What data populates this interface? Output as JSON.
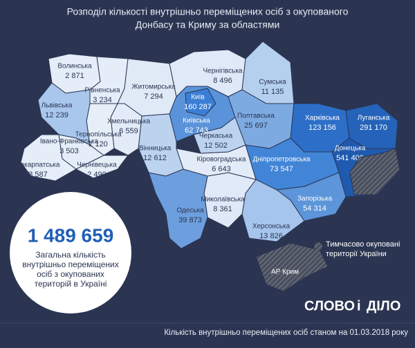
{
  "title": [
    "Розподіл кількості внутрішньо переміщених осіб з окупованого",
    "Донбасу та Криму за областями"
  ],
  "regions": [
    {
      "name": "Волинська",
      "value": "2 871",
      "color": "#e4edf8"
    },
    {
      "name": "Рівненська",
      "value": "3 234",
      "color": "#e4edf8"
    },
    {
      "name": "Житомирська",
      "value": "7 294",
      "color": "#e0eaf7"
    },
    {
      "name": "Чернігівська",
      "value": "8 496",
      "color": "#dfe9f7"
    },
    {
      "name": "Сумська",
      "value": "11 135",
      "color": "#b5cfee"
    },
    {
      "name": "Київська",
      "value": "62 743",
      "color": "#5a93da"
    },
    {
      "name": "Київ",
      "value": "160 287",
      "color": "#3a7fd5"
    },
    {
      "name": "Полтавська",
      "value": "25 697",
      "color": "#7eaae2"
    },
    {
      "name": "Харківська",
      "value": "123 156",
      "color": "#2d6fc8"
    },
    {
      "name": "Луганська",
      "value": "291 170",
      "color": "#2563ba"
    },
    {
      "name": "Донецька",
      "value": "541 400",
      "color": "#1f5aae"
    },
    {
      "name": "Дніпропетровська",
      "value": "73 547",
      "color": "#4285d6"
    },
    {
      "name": "Запорізька",
      "value": "54 314",
      "color": "#5d95da"
    },
    {
      "name": "Херсонська",
      "value": "13 826",
      "color": "#a6c5ec"
    },
    {
      "name": "Миколаївська",
      "value": "8 361",
      "color": "#dfe9f7"
    },
    {
      "name": "Кіровоградська",
      "value": "6 643",
      "color": "#e2ebf7"
    },
    {
      "name": "Черкаська",
      "value": "12 502",
      "color": "#bcd3ef"
    },
    {
      "name": "Вінницька",
      "value": "12 612",
      "color": "#bcd3ef"
    },
    {
      "name": "Хмельницька",
      "value": "6 559",
      "color": "#e2ebf7"
    },
    {
      "name": "Тернопільська",
      "value": "2 120",
      "color": "#e6eef8"
    },
    {
      "name": "Львівська",
      "value": "12 239",
      "color": "#a9c7ec"
    },
    {
      "name": "Івано-Франківська",
      "value": "3 503",
      "color": "#e4edf8"
    },
    {
      "name": "Закарпатська",
      "value": "3 587",
      "color": "#e4edf8"
    },
    {
      "name": "Чернівецька",
      "value": "2 490",
      "color": "#e6eef8"
    },
    {
      "name": "Одеська",
      "value": "39 873",
      "color": "#6d9fde"
    }
  ],
  "crimea": "АР Крим",
  "total": {
    "value": "1 489 659",
    "label": [
      "Загальна кількість",
      "внутрішньо переміщених",
      "осіб з окупованих",
      "територій в Україні"
    ]
  },
  "legend": [
    "Тимчасово окуповані",
    "території України"
  ],
  "logo": [
    "СЛОВО",
    "і",
    "ДІЛО"
  ],
  "footer": "Кількість внутрішньо переміщених осіб станом на 01.03.2018 року"
}
